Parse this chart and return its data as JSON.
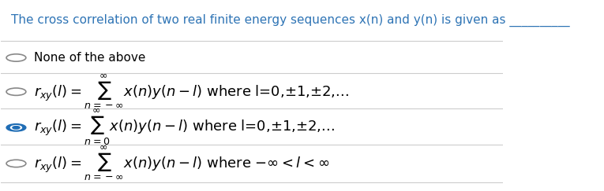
{
  "title_text": "The cross correlation of two real finite energy sequences x(n) and y(n) is given as __________",
  "title_color": "#2E74B5",
  "title_fontsize": 11,
  "bg_color": "#FFFFFF",
  "separator_color": "#CCCCCC",
  "options": [
    {
      "radio_filled": false,
      "text_math": "None of the above",
      "is_math": false,
      "text_color": "#000000",
      "fontsize": 11
    },
    {
      "radio_filled": false,
      "text_math": "$r_{xy}(l) = \\sum_{n=-\\infty}^{\\infty} x(n)y(n-l)$ where l=0,±1,±2,...",
      "is_math": true,
      "text_color": "#000000",
      "fontsize": 13
    },
    {
      "radio_filled": true,
      "text_math": "$r_{xy}(l) = \\sum_{n=0}^{\\infty} x(n)y(n-l)$ where l=0,±1,±2,...",
      "is_math": true,
      "text_color": "#000000",
      "fontsize": 13
    },
    {
      "radio_filled": false,
      "text_math": "$r_{xy}(l) = \\sum_{n=-\\infty}^{\\infty} x(n)y(n-l)$ where $-\\infty<l<\\infty$",
      "is_math": true,
      "text_color": "#000000",
      "fontsize": 13
    }
  ]
}
